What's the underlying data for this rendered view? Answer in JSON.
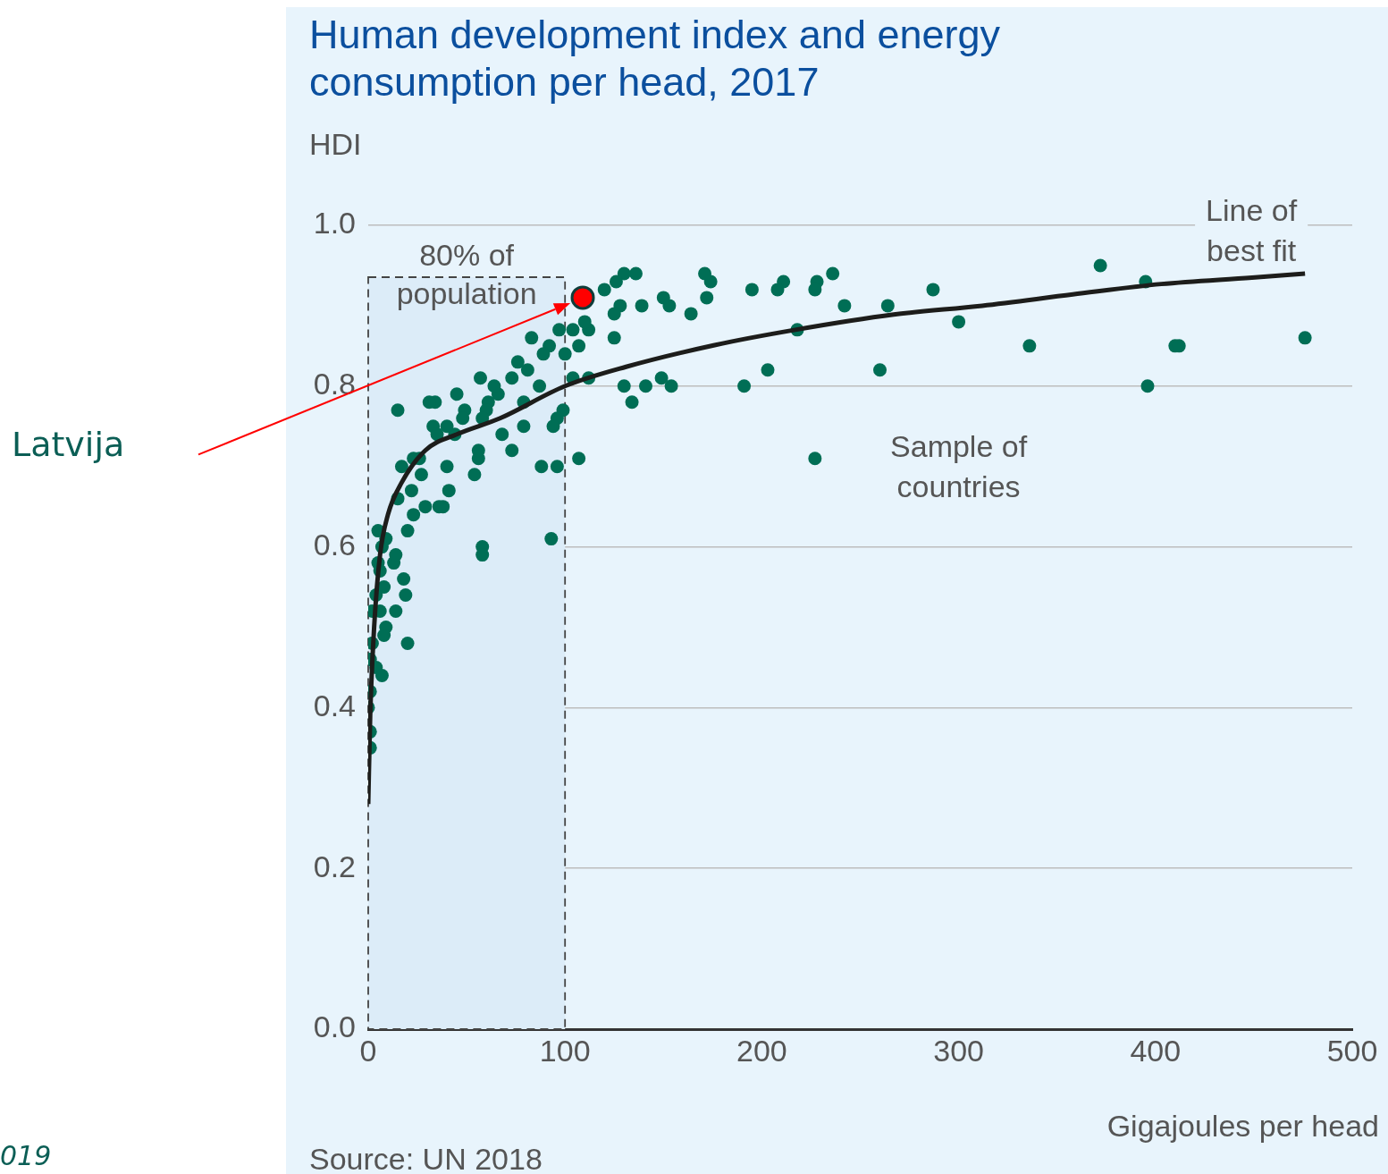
{
  "chart_data": {
    "type": "scatter",
    "title": "Human development index and energy consumption per head, 2017",
    "xlabel": "Gigajoules per head",
    "ylabel": "HDI",
    "xlim": [
      0,
      500
    ],
    "xticks": [
      0,
      100,
      200,
      300,
      400,
      500
    ],
    "ylim": [
      0,
      1
    ],
    "yticks": [
      {
        "value": 0,
        "label": "0.0"
      },
      {
        "value": 0.2,
        "label": "0.2"
      },
      {
        "value": 0.4,
        "label": "0.4"
      },
      {
        "value": 0.6,
        "label": "0.6"
      },
      {
        "value": 0.8,
        "label": "0.8"
      },
      {
        "value": 1,
        "label": "1.0"
      }
    ],
    "grid": "y",
    "marker": "circle",
    "series": [
      {
        "type": "scatter",
        "name": "Sample of countries",
        "color": "#006e55",
        "x": [
          372,
          395,
          396,
          410,
          412,
          476,
          336,
          300,
          287,
          264,
          260,
          242,
          236,
          228,
          227,
          227,
          218,
          211,
          208,
          203,
          195,
          191,
          174,
          171,
          172,
          164,
          154,
          149,
          153,
          150,
          141,
          134,
          130,
          139,
          136,
          130,
          126,
          128,
          125,
          125,
          120,
          112,
          110,
          112,
          107,
          107,
          104,
          100,
          104,
          97,
          99,
          96,
          94,
          96,
          88,
          93,
          87,
          92,
          89,
          83,
          81,
          76,
          79,
          79,
          73,
          73,
          68,
          66,
          64,
          61,
          60,
          57,
          58,
          58,
          56,
          54,
          56,
          58,
          49,
          48,
          45,
          44,
          41,
          40,
          38,
          36,
          34,
          31,
          33,
          35,
          27,
          26,
          29,
          23,
          23,
          22,
          20,
          17,
          15,
          15,
          18,
          20,
          19,
          14,
          13,
          14,
          9,
          5,
          8,
          6,
          9,
          8,
          4,
          2,
          2,
          1,
          4,
          7,
          1,
          0,
          1,
          1,
          5,
          7,
          6,
          40
        ],
        "values": [
          0.95,
          0.93,
          0.8,
          0.85,
          0.85,
          0.86,
          0.85,
          0.88,
          0.92,
          0.9,
          0.82,
          0.9,
          0.94,
          0.93,
          0.92,
          0.71,
          0.87,
          0.93,
          0.92,
          0.82,
          0.92,
          0.8,
          0.93,
          0.94,
          0.91,
          0.89,
          0.8,
          0.81,
          0.9,
          0.91,
          0.8,
          0.78,
          0.8,
          0.9,
          0.94,
          0.94,
          0.93,
          0.9,
          0.89,
          0.86,
          0.92,
          0.87,
          0.88,
          0.81,
          0.71,
          0.85,
          0.87,
          0.84,
          0.81,
          0.87,
          0.77,
          0.76,
          0.75,
          0.7,
          0.7,
          0.61,
          0.8,
          0.85,
          0.84,
          0.86,
          0.82,
          0.83,
          0.78,
          0.75,
          0.81,
          0.72,
          0.74,
          0.79,
          0.8,
          0.78,
          0.77,
          0.81,
          0.6,
          0.59,
          0.71,
          0.69,
          0.72,
          0.76,
          0.77,
          0.76,
          0.79,
          0.74,
          0.67,
          0.7,
          0.65,
          0.65,
          0.78,
          0.78,
          0.75,
          0.74,
          0.69,
          0.71,
          0.65,
          0.71,
          0.64,
          0.67,
          0.62,
          0.7,
          0.77,
          0.66,
          0.56,
          0.48,
          0.54,
          0.52,
          0.58,
          0.59,
          0.61,
          0.62,
          0.55,
          0.52,
          0.5,
          0.49,
          0.54,
          0.52,
          0.48,
          0.46,
          0.45,
          0.44,
          0.42,
          0.4,
          0.37,
          0.35,
          0.58,
          0.6,
          0.57,
          0.75
        ]
      },
      {
        "type": "line",
        "name": "Line of best fit",
        "color": "#1d1d1b",
        "marker": "none",
        "x": [
          0,
          1,
          3,
          6,
          10,
          17,
          29,
          45,
          67,
          100,
          131,
          176,
          217,
          267,
          312,
          358,
          403,
          449,
          476
        ],
        "values": [
          0.28,
          0.39,
          0.5,
          0.59,
          0.64,
          0.68,
          0.72,
          0.74,
          0.76,
          0.8,
          0.824,
          0.851,
          0.87,
          0.889,
          0.9,
          0.914,
          0.927,
          0.935,
          0.94
        ]
      },
      {
        "type": "scatter",
        "color": "#ff0000",
        "x": [
          109
        ],
        "values": [
          0.91
        ]
      }
    ],
    "bands": [
      {
        "axis": "x",
        "from": 0,
        "to": 100,
        "label": "80% of population"
      }
    ],
    "annotations": [
      "Latvija",
      "Source: UN 2018",
      "019"
    ]
  }
}
